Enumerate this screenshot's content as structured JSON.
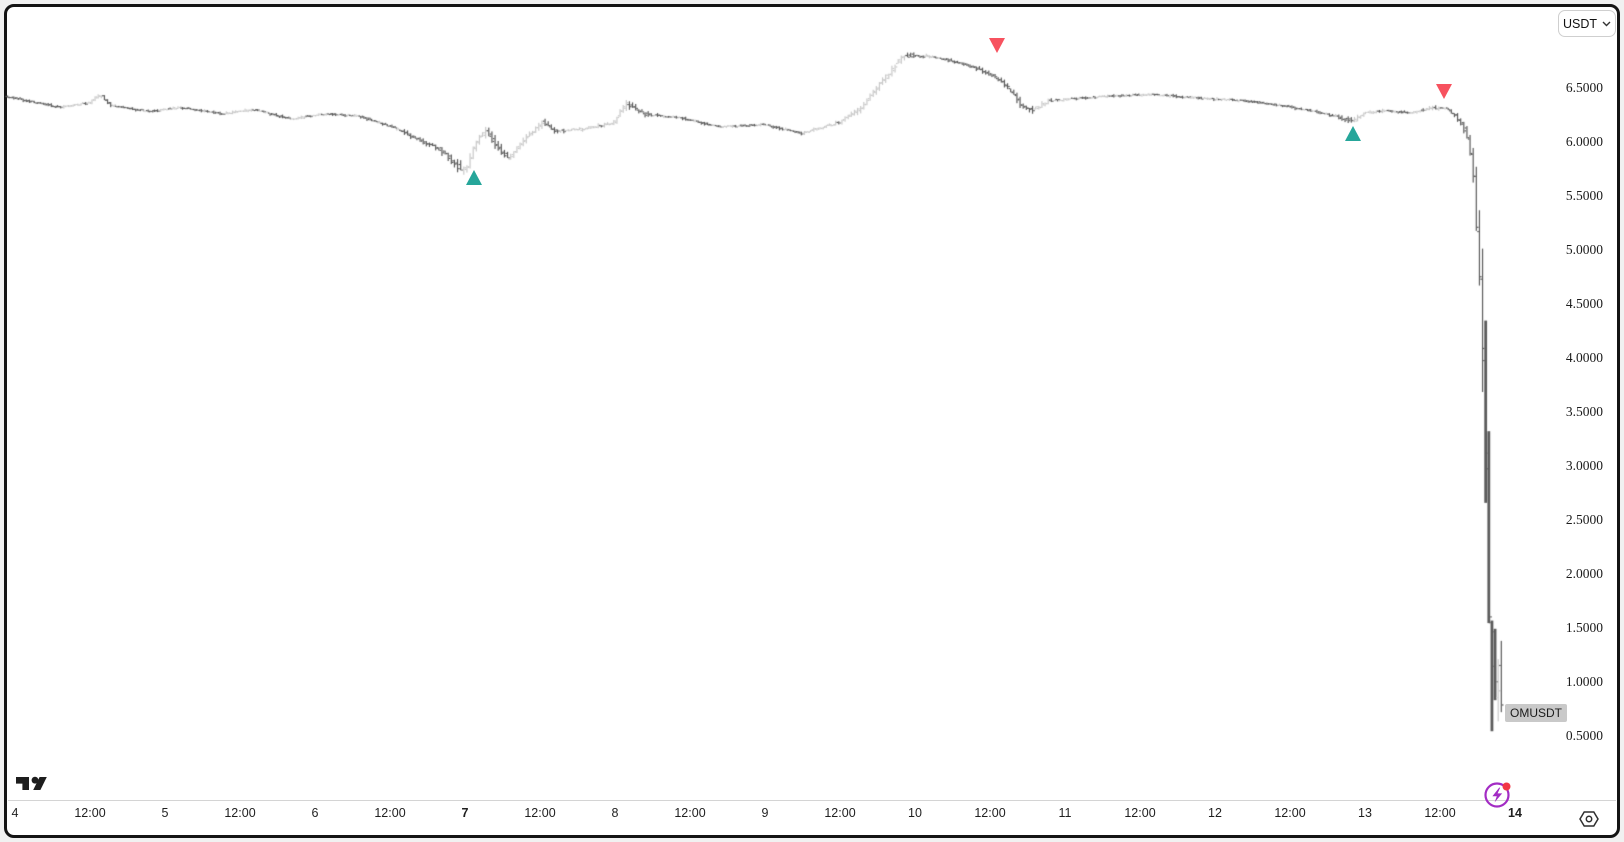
{
  "window": {
    "outer_background": "#f1f1f1",
    "frame_border_color": "#141414",
    "chart_background": "#ffffff"
  },
  "toolbar": {
    "quote_selector_label": "USDT"
  },
  "chart_data": {
    "type": "bar",
    "style": "ohlc-bars",
    "symbol": "OMUSDT",
    "quote_currency": "USDT",
    "interval_minutes": 30,
    "visible_range_days": "4 to 14 (with 12:00 intermediate ticks)",
    "grid": "off",
    "y_axis": {
      "side": "right",
      "min": 0.35,
      "max": 6.95,
      "tick_step": 0.5,
      "ticks": [
        6.5,
        6.0,
        5.5,
        5.0,
        4.5,
        4.0,
        3.5,
        3.0,
        2.5,
        2.0,
        1.5,
        1.0,
        0.5
      ],
      "tick_labels": [
        "6.5000",
        "6.0000",
        "5.5000",
        "5.0000",
        "4.5000",
        "4.0000",
        "3.5000",
        "3.0000",
        "2.5000",
        "2.0000",
        "1.5000",
        "1.0000",
        "0.5000"
      ]
    },
    "x_axis": {
      "side": "bottom",
      "ticks": [
        {
          "label": "4",
          "t": 0.0,
          "bold": false
        },
        {
          "label": "12:00",
          "t": 0.5,
          "bold": false
        },
        {
          "label": "5",
          "t": 1.0,
          "bold": false
        },
        {
          "label": "12:00",
          "t": 1.5,
          "bold": false
        },
        {
          "label": "6",
          "t": 2.0,
          "bold": false
        },
        {
          "label": "12:00",
          "t": 2.5,
          "bold": false
        },
        {
          "label": "7",
          "t": 3.0,
          "bold": true
        },
        {
          "label": "12:00",
          "t": 3.5,
          "bold": false
        },
        {
          "label": "8",
          "t": 4.0,
          "bold": false
        },
        {
          "label": "12:00",
          "t": 4.5,
          "bold": false
        },
        {
          "label": "9",
          "t": 5.0,
          "bold": false
        },
        {
          "label": "12:00",
          "t": 5.5,
          "bold": false
        },
        {
          "label": "10",
          "t": 6.0,
          "bold": false
        },
        {
          "label": "12:00",
          "t": 6.5,
          "bold": false
        },
        {
          "label": "11",
          "t": 7.0,
          "bold": false
        },
        {
          "label": "12:00",
          "t": 7.5,
          "bold": false
        },
        {
          "label": "12",
          "t": 8.0,
          "bold": false
        },
        {
          "label": "12:00",
          "t": 8.5,
          "bold": false
        },
        {
          "label": "13",
          "t": 9.0,
          "bold": false
        },
        {
          "label": "12:00",
          "t": 9.5,
          "bold": false
        },
        {
          "label": "14",
          "t": 10.0,
          "bold": true
        }
      ]
    },
    "price_path_anchors": [
      [
        -0.06,
        6.42,
        0.02
      ],
      [
        0.1,
        6.38,
        0.02
      ],
      [
        0.3,
        6.32,
        0.02
      ],
      [
        0.5,
        6.36,
        0.02
      ],
      [
        0.57,
        6.44,
        0.035
      ],
      [
        0.65,
        6.34,
        0.02
      ],
      [
        0.9,
        6.28,
        0.02
      ],
      [
        1.1,
        6.32,
        0.02
      ],
      [
        1.4,
        6.26,
        0.02
      ],
      [
        1.6,
        6.3,
        0.02
      ],
      [
        1.85,
        6.21,
        0.02
      ],
      [
        2.05,
        6.26,
        0.02
      ],
      [
        2.3,
        6.24,
        0.02
      ],
      [
        2.5,
        6.15,
        0.025
      ],
      [
        2.7,
        6.02,
        0.03
      ],
      [
        2.85,
        5.92,
        0.05
      ],
      [
        2.95,
        5.78,
        0.06
      ],
      [
        3.02,
        5.74,
        0.07
      ],
      [
        3.08,
        6.0,
        0.06
      ],
      [
        3.15,
        6.1,
        0.05
      ],
      [
        3.22,
        5.95,
        0.05
      ],
      [
        3.3,
        5.84,
        0.06
      ],
      [
        3.4,
        6.02,
        0.05
      ],
      [
        3.52,
        6.18,
        0.05
      ],
      [
        3.62,
        6.1,
        0.03
      ],
      [
        3.8,
        6.12,
        0.025
      ],
      [
        4.0,
        6.18,
        0.025
      ],
      [
        4.08,
        6.36,
        0.045
      ],
      [
        4.2,
        6.26,
        0.03
      ],
      [
        4.45,
        6.22,
        0.02
      ],
      [
        4.7,
        6.14,
        0.02
      ],
      [
        5.0,
        6.16,
        0.02
      ],
      [
        5.25,
        6.08,
        0.025
      ],
      [
        5.5,
        6.18,
        0.025
      ],
      [
        5.65,
        6.32,
        0.04
      ],
      [
        5.8,
        6.58,
        0.05
      ],
      [
        5.93,
        6.8,
        0.05
      ],
      [
        6.05,
        6.8,
        0.03
      ],
      [
        6.2,
        6.77,
        0.025
      ],
      [
        6.38,
        6.7,
        0.025
      ],
      [
        6.52,
        6.62,
        0.03
      ],
      [
        6.62,
        6.52,
        0.04
      ],
      [
        6.72,
        6.34,
        0.05
      ],
      [
        6.8,
        6.3,
        0.04
      ],
      [
        6.9,
        6.38,
        0.03
      ],
      [
        7.05,
        6.4,
        0.02
      ],
      [
        7.35,
        6.43,
        0.02
      ],
      [
        7.6,
        6.44,
        0.02
      ],
      [
        7.85,
        6.41,
        0.02
      ],
      [
        8.1,
        6.39,
        0.02
      ],
      [
        8.35,
        6.36,
        0.02
      ],
      [
        8.6,
        6.3,
        0.02
      ],
      [
        8.8,
        6.24,
        0.025
      ],
      [
        8.93,
        6.19,
        0.035
      ],
      [
        9.0,
        6.27,
        0.03
      ],
      [
        9.15,
        6.29,
        0.02
      ],
      [
        9.3,
        6.27,
        0.02
      ],
      [
        9.45,
        6.31,
        0.03
      ],
      [
        9.53,
        6.32,
        0.03
      ],
      [
        9.6,
        6.26,
        0.03
      ],
      [
        9.66,
        6.15,
        0.04
      ],
      [
        9.7,
        6.0,
        0.06
      ],
      [
        9.73,
        5.7,
        0.15
      ],
      [
        9.755,
        5.2,
        0.3
      ],
      [
        9.775,
        4.7,
        0.45
      ],
      [
        9.795,
        3.95,
        0.6
      ],
      [
        9.815,
        2.95,
        0.8
      ],
      [
        9.835,
        1.7,
        0.9
      ],
      [
        9.85,
        1.0,
        0.5
      ],
      [
        9.865,
        1.65,
        0.55
      ],
      [
        9.88,
        0.88,
        0.42
      ],
      [
        9.895,
        1.12,
        0.45
      ],
      [
        9.91,
        0.78,
        0.28
      ]
    ],
    "markers": [
      {
        "kind": "buy",
        "shape": "triangle-up",
        "t": 3.06,
        "price": 5.74,
        "color": "#26a69a"
      },
      {
        "kind": "sell",
        "shape": "triangle-down",
        "t": 6.55,
        "price": 6.96,
        "color": "#f7525f"
      },
      {
        "kind": "buy",
        "shape": "triangle-up",
        "t": 8.92,
        "price": 6.15,
        "color": "#26a69a"
      },
      {
        "kind": "sell",
        "shape": "triangle-down",
        "t": 9.53,
        "price": 6.54,
        "color": "#f7525f"
      }
    ],
    "colors": {
      "up_bar": "#c9c9c9",
      "down_bar": "#5b5b5b"
    },
    "last_price_label": "OMUSDT"
  },
  "icons": {
    "flash_icon": {
      "ring": "#a32cc4",
      "bolt": "#a32cc4",
      "notification_dot": "#f23645"
    },
    "axis_settings_icon": {
      "stroke": "#2f2f2f"
    },
    "tradingview_logo": {
      "color": "#1d1d1d"
    },
    "chevron_down_icon": {
      "stroke": "#333333"
    }
  }
}
